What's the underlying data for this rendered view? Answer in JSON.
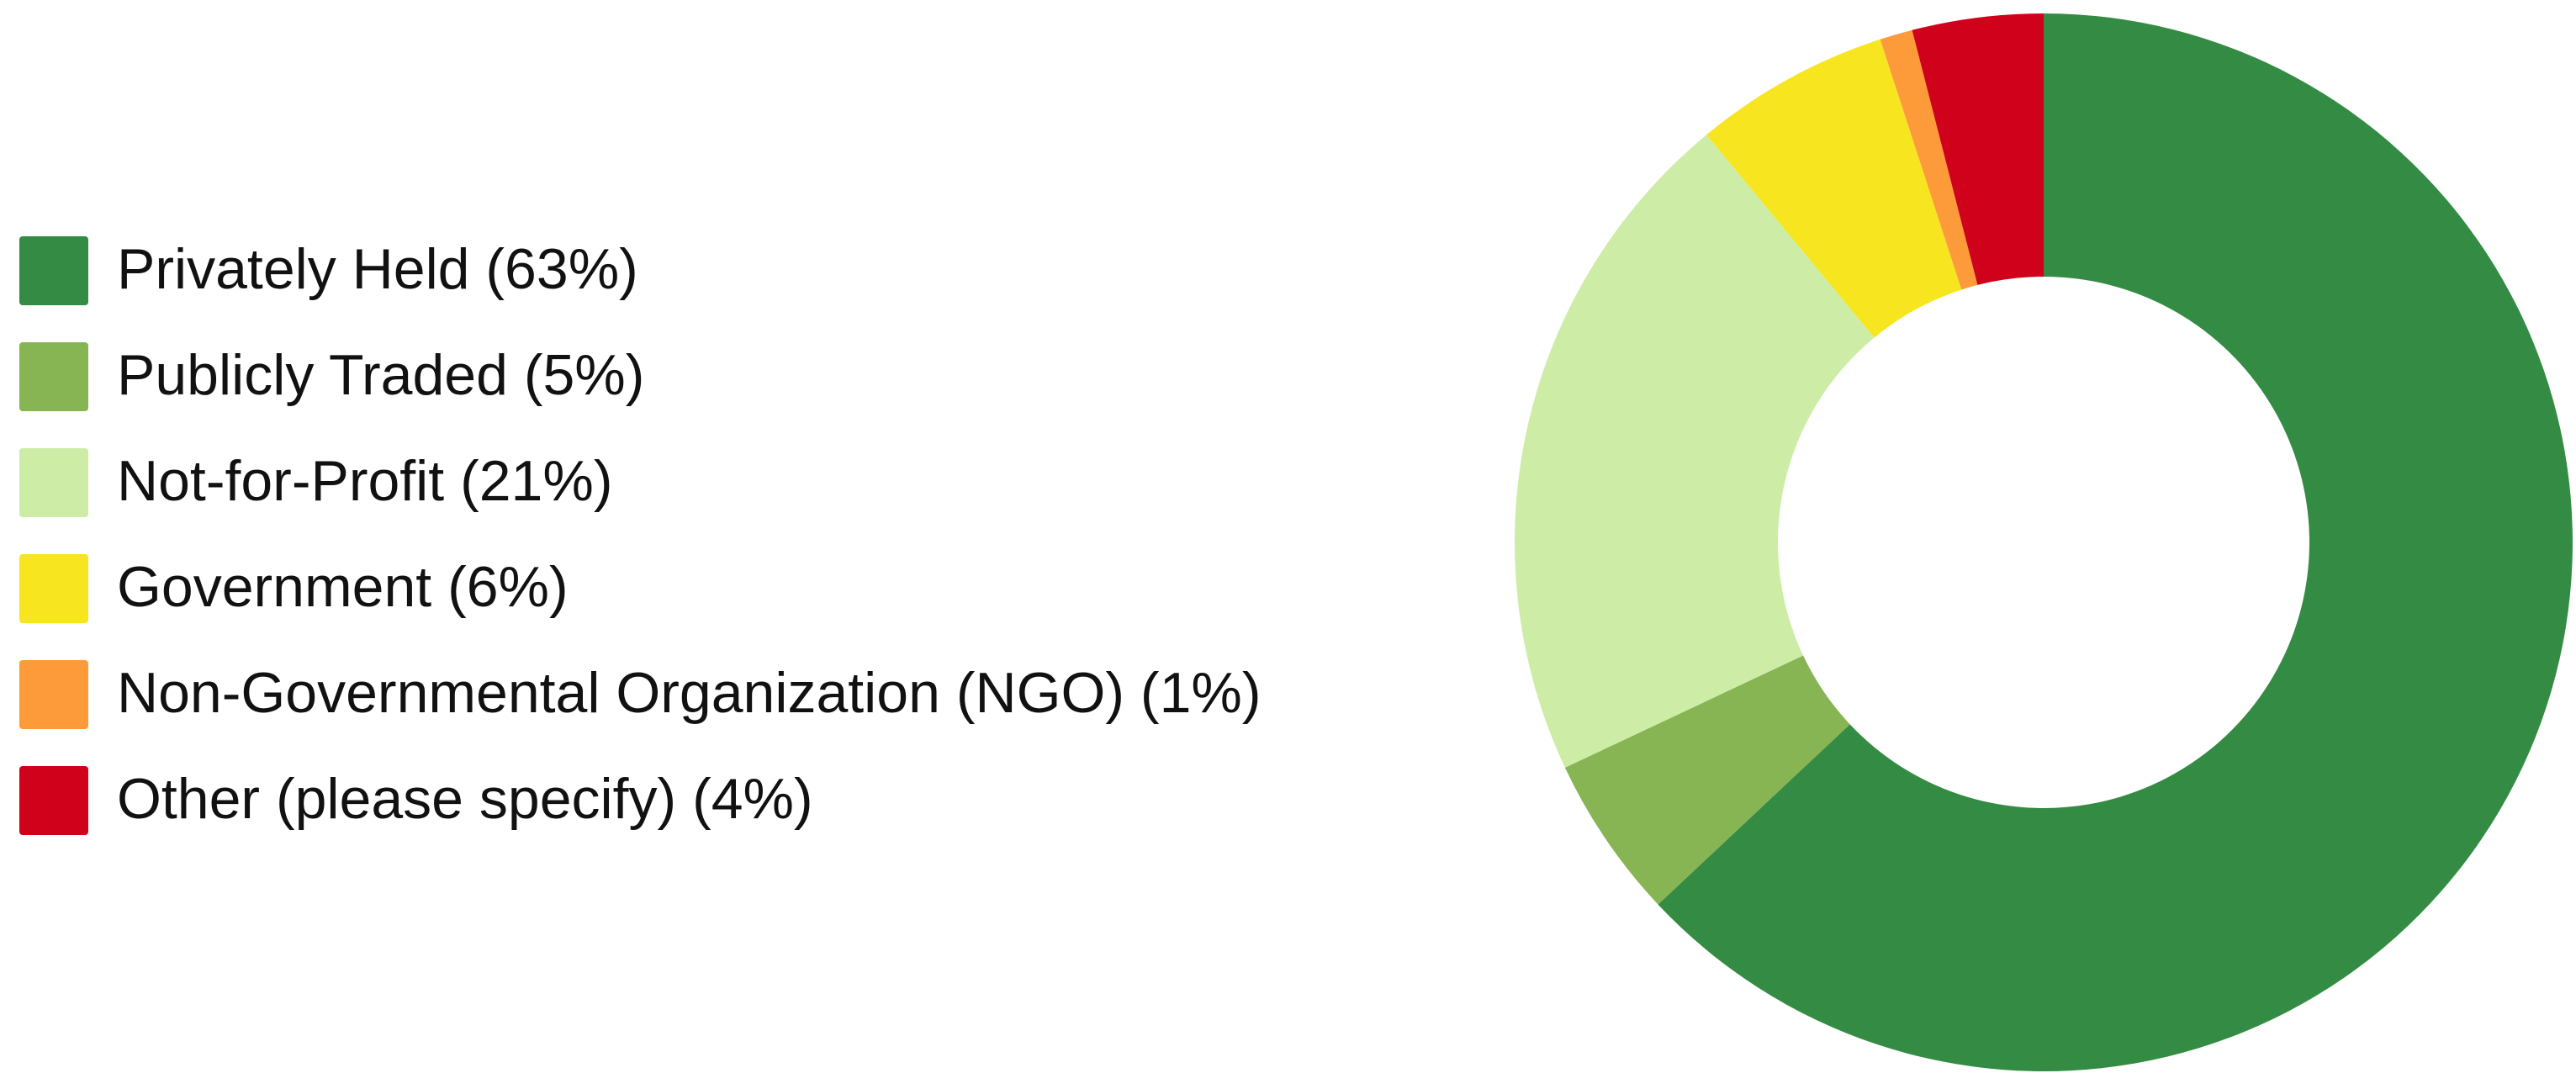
{
  "chart_data": {
    "type": "donut",
    "categories": [
      "Privately Held",
      "Publicly Traded",
      "Not-for-Profit",
      "Government",
      "Non-Governmental Organization (NGO)",
      "Other (please specify)"
    ],
    "values": [
      63,
      5,
      21,
      6,
      1,
      4
    ],
    "value_labels": [
      "(63%)",
      "(5%)",
      "(21%)",
      "(6%)",
      "(1%)",
      "(4%)"
    ],
    "colors": [
      "#348c44",
      "#87b553",
      "#cdeda7",
      "#f7e520",
      "#fd9b3a",
      "#d0021b"
    ],
    "legend": "left"
  }
}
